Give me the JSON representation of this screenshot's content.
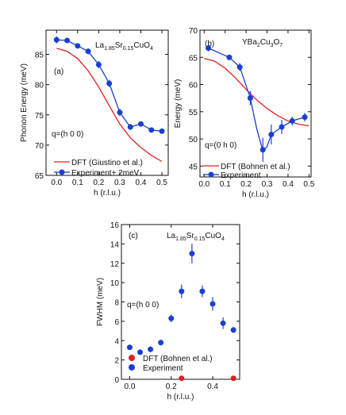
{
  "colors": {
    "dft": "#e02020",
    "experiment": "#1a3fd0",
    "dft_point": "#e02020",
    "axis": "#111111"
  },
  "chart_data": [
    {
      "id": "a",
      "type": "line",
      "panel_label": "(a)",
      "compound": {
        "el1": "La",
        "sub1": "1.85",
        "el2": "Sr",
        "sub2": "0.15",
        "el3": "CuO",
        "sub3": "4"
      },
      "q_label": "q=(h 0 0)",
      "xlabel": "h (r.l.u.)",
      "ylabel": "Phonon Energy (meV)",
      "xlim": [
        -0.05,
        0.53
      ],
      "ylim": [
        65,
        89
      ],
      "xticks": [
        0.0,
        0.1,
        0.2,
        0.3,
        0.4,
        0.5
      ],
      "xtick_labels": [
        "0.0",
        "0.1",
        "0.2",
        "0.3",
        "0.4",
        "0.5"
      ],
      "yticks": [
        65,
        70,
        75,
        80,
        85
      ],
      "ytick_labels": [
        "65",
        "70",
        "75",
        "80",
        "85"
      ],
      "legend_position": "bottom-center",
      "series": [
        {
          "name": "DFT (Giustino et al.)",
          "style": "line",
          "x": [
            0.0,
            0.05,
            0.1,
            0.15,
            0.2,
            0.25,
            0.3,
            0.35,
            0.4,
            0.45,
            0.5
          ],
          "y": [
            86.0,
            85.5,
            84.3,
            82.3,
            79.6,
            76.5,
            73.5,
            71.2,
            69.6,
            68.3,
            67.3
          ]
        },
        {
          "name": "Experiment+ 2meV",
          "style": "line+markers",
          "x": [
            0.0,
            0.05,
            0.1,
            0.15,
            0.2,
            0.25,
            0.3,
            0.35,
            0.4,
            0.45,
            0.5
          ],
          "y": [
            87.4,
            87.3,
            86.4,
            85.5,
            83.3,
            80.2,
            75.4,
            73.0,
            73.5,
            72.5,
            72.3
          ],
          "yerr": [
            0.6,
            0.4,
            0.4,
            0.5,
            0.6,
            0.6,
            0.6,
            0.5,
            0.4,
            0.4,
            0.4
          ]
        }
      ]
    },
    {
      "id": "b",
      "type": "line",
      "panel_label": "(b)",
      "compound": {
        "el1": "YBa",
        "sub1": "2",
        "el2": "Cu",
        "sub2": "3",
        "el3": "O",
        "sub3": "7"
      },
      "q_label": "q=(0 h 0)",
      "xlabel": "h (r.l.u.)",
      "ylabel": "Energy (meV)",
      "xlim": [
        -0.02,
        0.51
      ],
      "ylim": [
        43,
        70
      ],
      "xticks": [
        0.0,
        0.1,
        0.2,
        0.3,
        0.4,
        0.5
      ],
      "xtick_labels": [
        "0.0",
        "0.1",
        "0.2",
        "0.3",
        "0.4",
        "0.5"
      ],
      "yticks": [
        45,
        50,
        55,
        60,
        65,
        70
      ],
      "ytick_labels": [
        "45",
        "50",
        "55",
        "60",
        "65",
        "70"
      ],
      "legend_position": "bottom-left",
      "series": [
        {
          "name": "DFT (Bohnen et al.)",
          "style": "line",
          "x": [
            0.0,
            0.05,
            0.1,
            0.15,
            0.2,
            0.25,
            0.3,
            0.35,
            0.4,
            0.45,
            0.5
          ],
          "y": [
            64.8,
            64.3,
            63.0,
            61.2,
            59.1,
            57.2,
            55.6,
            54.3,
            53.3,
            52.7,
            52.4
          ]
        },
        {
          "name": "Experiment",
          "style": "markers",
          "x": [
            0.02,
            0.12,
            0.17,
            0.22,
            0.28,
            0.32,
            0.37,
            0.42,
            0.48
          ],
          "y": [
            66.7,
            65.0,
            63.2,
            57.5,
            48.0,
            50.8,
            52.2,
            53.3,
            54.0
          ],
          "yerr": [
            0.6,
            0.5,
            0.7,
            1.3,
            2.2,
            1.8,
            1.3,
            0.8,
            0.8
          ]
        },
        {
          "name": "",
          "style": "line",
          "x": [
            0.02,
            0.12,
            0.17,
            0.22,
            0.25,
            0.28,
            0.3,
            0.32,
            0.37,
            0.42,
            0.48
          ],
          "y": [
            66.7,
            65.0,
            63.2,
            57.5,
            52.0,
            47.8,
            48.6,
            50.8,
            52.2,
            53.3,
            54.0
          ]
        }
      ]
    },
    {
      "id": "c",
      "type": "scatter",
      "panel_label": "(c)",
      "compound": {
        "el1": "La",
        "sub1": "1.85",
        "el2": "Sr",
        "sub2": "0.15",
        "el3": "CuO",
        "sub3": "4"
      },
      "q_label": "q=(h 0 0)",
      "xlabel": "h (r.l.u.)",
      "ylabel": "FWHM (meV)",
      "xlim": [
        -0.04,
        0.53
      ],
      "ylim": [
        0,
        16
      ],
      "xticks": [
        0.0,
        0.2,
        0.4
      ],
      "xtick_labels": [
        "0.0",
        "0.2",
        "0.4"
      ],
      "yticks": [
        0,
        2,
        4,
        6,
        8,
        10,
        12,
        14,
        16
      ],
      "ytick_labels": [
        "0",
        "2",
        "4",
        "6",
        "8",
        "10",
        "12",
        "14",
        "16"
      ],
      "legend_position": "bottom-left",
      "series": [
        {
          "name": "DFT (Bohnen et al.)",
          "style": "markers",
          "x": [
            0.25,
            0.5
          ],
          "y": [
            0.1,
            0.1
          ]
        },
        {
          "name": "Experiment",
          "style": "markers",
          "x": [
            0.0,
            0.05,
            0.1,
            0.15,
            0.2,
            0.25,
            0.3,
            0.35,
            0.4,
            0.45,
            0.5
          ],
          "y": [
            3.3,
            2.8,
            3.1,
            3.8,
            6.3,
            9.1,
            13.0,
            9.1,
            7.8,
            5.8,
            5.1
          ],
          "yerr": [
            0.2,
            0.2,
            0.2,
            0.3,
            0.4,
            0.7,
            1.0,
            0.6,
            0.7,
            0.6,
            0.3
          ]
        }
      ]
    }
  ]
}
